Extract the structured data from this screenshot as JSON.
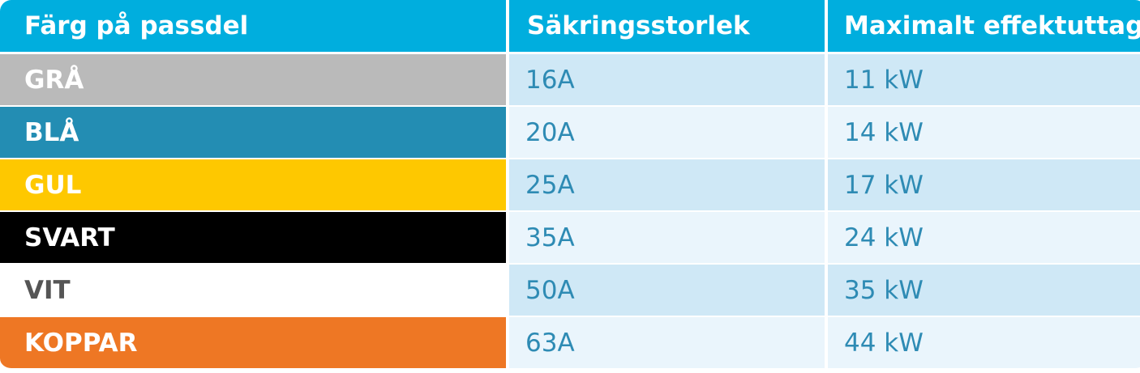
{
  "header": {
    "col1": "Färg på passdel",
    "col2": "Säkringsstorlek",
    "col3": "Maximalt effektuttag"
  },
  "rows": [
    {
      "color_name": "GRÅ",
      "fuse": "16A",
      "power": "11 kW",
      "bg": "#bababa",
      "fg": "#ffffff"
    },
    {
      "color_name": "BLÅ",
      "fuse": "20A",
      "power": "14 kW",
      "bg": "#238db3",
      "fg": "#ffffff"
    },
    {
      "color_name": "GUL",
      "fuse": "25A",
      "power": "17 kW",
      "bg": "#fec800",
      "fg": "#ffffff"
    },
    {
      "color_name": "SVART",
      "fuse": "35A",
      "power": "24 kW",
      "bg": "#000000",
      "fg": "#ffffff"
    },
    {
      "color_name": "VIT",
      "fuse": "50A",
      "power": "35 kW",
      "bg": "#ffffff",
      "fg": "#555555"
    },
    {
      "color_name": "KOPPAR",
      "fuse": "63A",
      "power": "44 kW",
      "bg": "#ee7724",
      "fg": "#ffffff"
    }
  ],
  "colors": {
    "header_bg": "#00aede",
    "value_text": "#2e8bb4",
    "row_light_1": "#cfe8f6",
    "row_light_2": "#eaf5fc"
  }
}
